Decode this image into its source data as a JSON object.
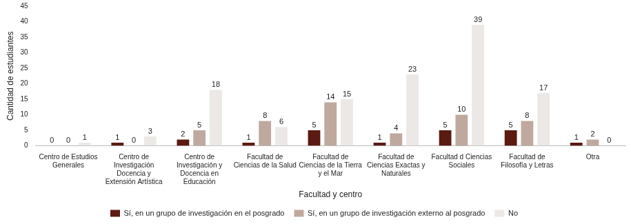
{
  "chart_data": {
    "type": "bar",
    "categories": [
      "Centro de Estudios Generales",
      "Centro de Investigación Docencia y Extensión Artística",
      "Centro de Investigación y Docencia en Educación",
      "Facultad de Ciencias de la Salud",
      "Facultad de Ciencias de la Tierra y el Mar",
      "Facultad de Ciencias Exactas y Naturales",
      "Facultad d Ciencias Sociales",
      "Facultad de Filosofía y Letras",
      "Otra"
    ],
    "series": [
      {
        "name": "Sí, en un grupo de investigación en el posgrado",
        "color": "#5b1a12",
        "values": [
          0,
          1,
          2,
          1,
          5,
          1,
          5,
          5,
          1
        ]
      },
      {
        "name": "Sí, en un grupo de investigación externo al posgrado",
        "color": "#bfa99f",
        "values": [
          0,
          0,
          5,
          8,
          14,
          4,
          10,
          8,
          2
        ]
      },
      {
        "name": "No",
        "color": "#ebe8e6",
        "values": [
          1,
          3,
          18,
          6,
          15,
          23,
          39,
          17,
          0
        ]
      }
    ],
    "x_label": "Facultad y centro",
    "y_label": "Cantidad de estudiantes",
    "ylim": [
      0,
      45
    ],
    "yticks": [
      0,
      5,
      10,
      15,
      20,
      25,
      30,
      35,
      40,
      45
    ],
    "grid": false,
    "legend": "bottom",
    "data_labels": true
  }
}
